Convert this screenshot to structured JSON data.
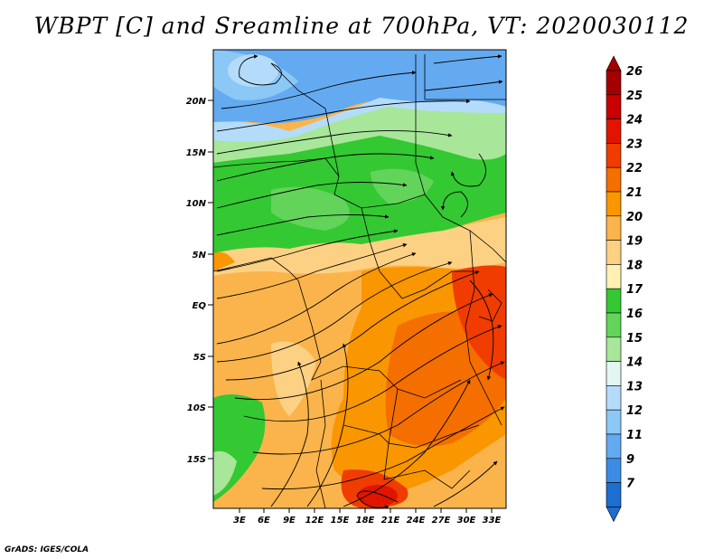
{
  "title": "WBPT [C] and Sreamline at 700hPa, VT: 2020030112",
  "credit": "GrADS: IGES/COLA",
  "map": {
    "lat_labels": [
      "20N",
      "15N",
      "10N",
      "5N",
      "EQ",
      "5S",
      "10S",
      "15S"
    ],
    "lon_labels": [
      "3E",
      "6E",
      "9E",
      "12E",
      "15E",
      "18E",
      "21E",
      "24E",
      "27E",
      "30E",
      "33E"
    ]
  },
  "colorbar": {
    "labels": [
      "26",
      "25",
      "24",
      "23",
      "22",
      "21",
      "20",
      "19",
      "18",
      "17",
      "16",
      "15",
      "14",
      "13",
      "12",
      "11",
      "9",
      "7"
    ],
    "colors": [
      "#a50000",
      "#c80000",
      "#e11400",
      "#f03c00",
      "#f56e00",
      "#f99600",
      "#fbb44b",
      "#fdd183",
      "#fff0b4",
      "#34c832",
      "#62d45a",
      "#a8e69a",
      "#e4f6f2",
      "#b4dcfa",
      "#8cc8f5",
      "#64aaf0",
      "#3c8ce6",
      "#1e6ed2"
    ],
    "tip_top_color": "#a50000",
    "tip_bottom_color": "#1e6ed2"
  }
}
